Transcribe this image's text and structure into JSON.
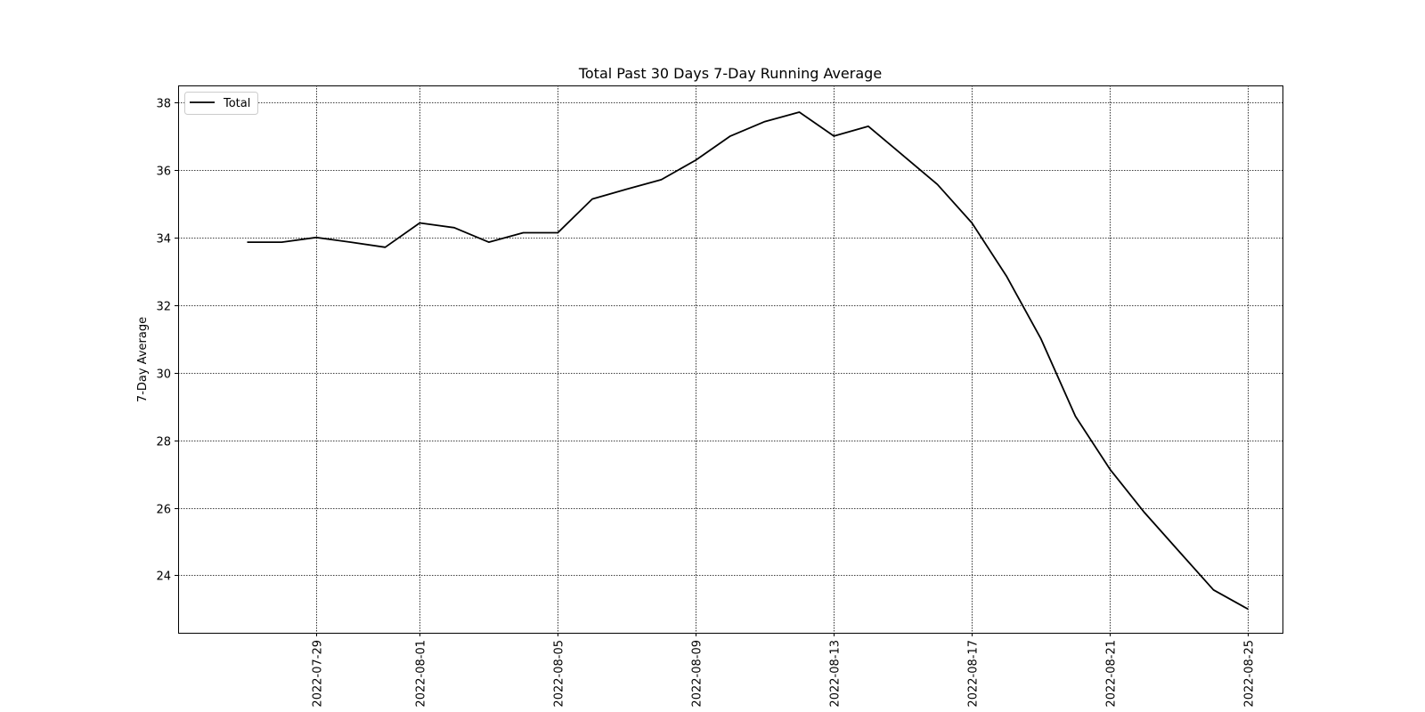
{
  "chart_data": {
    "type": "line",
    "title": "Total Past 30 Days 7-Day Running Average",
    "xlabel": "",
    "ylabel": "7-Day Average",
    "ylim": [
      22.3,
      38.5
    ],
    "xlim": [
      "2022-07-25",
      "2022-08-26"
    ],
    "y_ticks": [
      24,
      26,
      28,
      30,
      32,
      34,
      36,
      38
    ],
    "x_ticks": [
      "2022-07-29",
      "2022-08-01",
      "2022-08-05",
      "2022-08-09",
      "2022-08-13",
      "2022-08-17",
      "2022-08-21",
      "2022-08-25"
    ],
    "grid": true,
    "legend_position": "upper left",
    "series": [
      {
        "name": "Total",
        "color": "#000000",
        "x": [
          "2022-07-27",
          "2022-07-28",
          "2022-07-29",
          "2022-07-30",
          "2022-07-31",
          "2022-08-01",
          "2022-08-02",
          "2022-08-03",
          "2022-08-04",
          "2022-08-05",
          "2022-08-06",
          "2022-08-07",
          "2022-08-08",
          "2022-08-09",
          "2022-08-10",
          "2022-08-11",
          "2022-08-12",
          "2022-08-13",
          "2022-08-14",
          "2022-08-15",
          "2022-08-16",
          "2022-08-17",
          "2022-08-18",
          "2022-08-19",
          "2022-08-20",
          "2022-08-21",
          "2022-08-22",
          "2022-08-23",
          "2022-08-24",
          "2022-08-25"
        ],
        "values": [
          33.86,
          33.86,
          34.0,
          33.86,
          33.71,
          34.43,
          34.29,
          33.86,
          34.14,
          34.14,
          35.14,
          35.43,
          35.71,
          36.29,
          37.0,
          37.43,
          37.71,
          37.0,
          37.29,
          36.43,
          35.57,
          34.43,
          32.86,
          31.0,
          28.71,
          27.14,
          25.86,
          24.71,
          23.57,
          23.0
        ]
      }
    ]
  }
}
